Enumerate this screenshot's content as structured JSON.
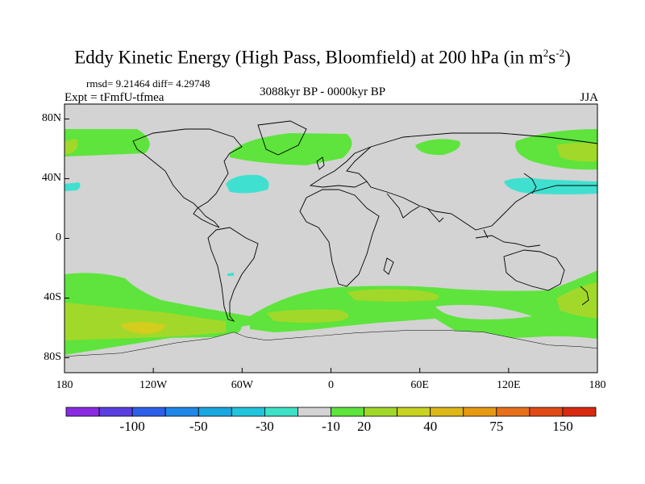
{
  "title": {
    "main": "Eddy Kinetic Energy (High Pass, Bloomfield) at 200 hPa (in m",
    "sup1": "2",
    "mid": "s",
    "sup2": "-2",
    "end": ")"
  },
  "stats": "rmsd= 9.21464 diff= 4.29748",
  "experiment": "Expt = tFmfU-tfmea",
  "period": "3088kyr BP - 0000kyr BP",
  "season": "JJA",
  "colors": {
    "land_neutral": "#d3d3d3",
    "cyan": "#40e0d0",
    "green1": "#5ee43c",
    "green2": "#a2d82a",
    "yellow": "#d4cd1e"
  },
  "map": {
    "lon_range": [
      -180,
      180
    ],
    "lat_range": [
      -90,
      90
    ],
    "y_ticks": [
      {
        "value": 80,
        "label": "80N"
      },
      {
        "value": 40,
        "label": "40N"
      },
      {
        "value": 0,
        "label": "0"
      },
      {
        "value": -40,
        "label": "40S"
      },
      {
        "value": -80,
        "label": "80S"
      }
    ],
    "x_ticks": [
      {
        "value": -180,
        "label": "180"
      },
      {
        "value": -120,
        "label": "120W"
      },
      {
        "value": -60,
        "label": "60W"
      },
      {
        "value": 0,
        "label": "0"
      },
      {
        "value": 60,
        "label": "60E"
      },
      {
        "value": 120,
        "label": "120E"
      },
      {
        "value": 180,
        "label": "180"
      }
    ]
  },
  "colorbar": {
    "colors": [
      "#8a2be2",
      "#5a3ee0",
      "#2e5fe8",
      "#1f87e8",
      "#1aa6e0",
      "#22c4dc",
      "#3ee0c6",
      "#d3d3d3",
      "#5ee43c",
      "#a2d82a",
      "#c8d220",
      "#dcb818",
      "#e69a14",
      "#e6701a",
      "#e04a16",
      "#d82a10"
    ],
    "labels": [
      {
        "index": 2,
        "text": "-100"
      },
      {
        "index": 4,
        "text": "-50"
      },
      {
        "index": 6,
        "text": "-30"
      },
      {
        "index": 8,
        "text": "-10"
      },
      {
        "index": 9,
        "text": "20"
      },
      {
        "index": 11,
        "text": "40"
      },
      {
        "index": 13,
        "text": "75"
      },
      {
        "index": 15,
        "text": "150"
      }
    ]
  }
}
